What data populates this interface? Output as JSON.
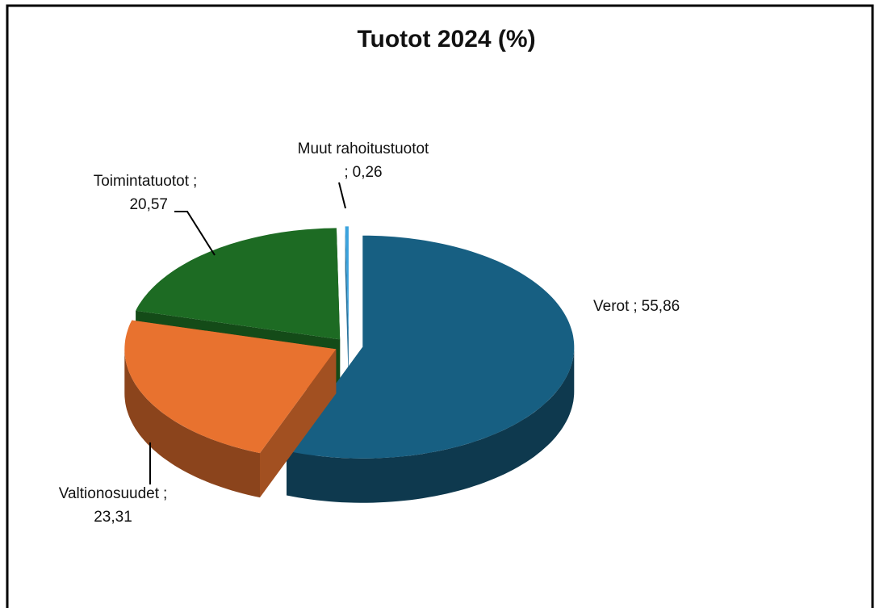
{
  "chart_data": {
    "type": "pie3d",
    "title": "Tuotot 2024 (%)",
    "categories": [
      "Verot",
      "Valtionosuudet",
      "Toimintatuotot",
      "Muut rahoitustuotot"
    ],
    "values": [
      55.86,
      23.31,
      20.57,
      0.26
    ],
    "value_labels": [
      "55,86",
      "23,31",
      "20,57",
      "0,26"
    ],
    "label_separator": ";",
    "colors": [
      "#175f82",
      "#e8722f",
      "#1d6b23",
      "#3ba3de"
    ]
  }
}
